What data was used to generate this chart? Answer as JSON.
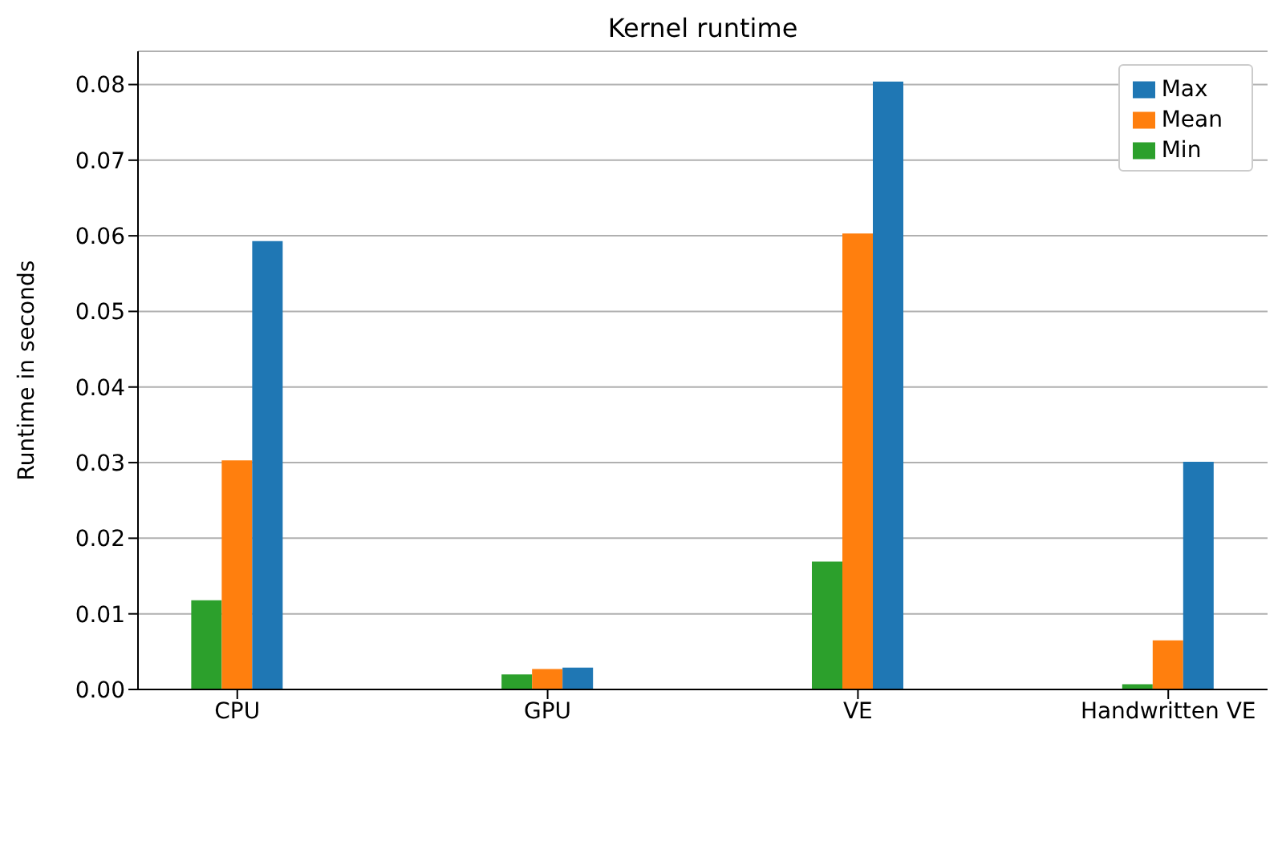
{
  "chart_data": {
    "type": "bar",
    "title": "Kernel runtime",
    "ylabel": "Runtime in seconds",
    "categories": [
      "CPU",
      "GPU",
      "VE",
      "Handwritten VE"
    ],
    "series": [
      {
        "name": "Min",
        "color": "#2ca02c",
        "values": [
          0.0118,
          0.002,
          0.0169,
          0.0007
        ]
      },
      {
        "name": "Mean",
        "color": "#ff7f0e",
        "values": [
          0.0303,
          0.0027,
          0.0603,
          0.0065
        ]
      },
      {
        "name": "Max",
        "color": "#1f77b4",
        "values": [
          0.0593,
          0.0029,
          0.0804,
          0.0301
        ]
      }
    ],
    "ylim": [
      0,
      0.0844
    ],
    "yticks": [
      {
        "value": 0,
        "label": "0.00"
      },
      {
        "value": 0.01,
        "label": "0.01"
      },
      {
        "value": 0.02,
        "label": "0.02"
      },
      {
        "value": 0.03,
        "label": "0.03"
      },
      {
        "value": 0.04,
        "label": "0.04"
      },
      {
        "value": 0.05,
        "label": "0.05"
      },
      {
        "value": 0.06,
        "label": "0.06"
      },
      {
        "value": 0.07,
        "label": "0.07"
      },
      {
        "value": 0.08,
        "label": "0.08"
      }
    ],
    "grid": "y",
    "legend": "top right"
  }
}
